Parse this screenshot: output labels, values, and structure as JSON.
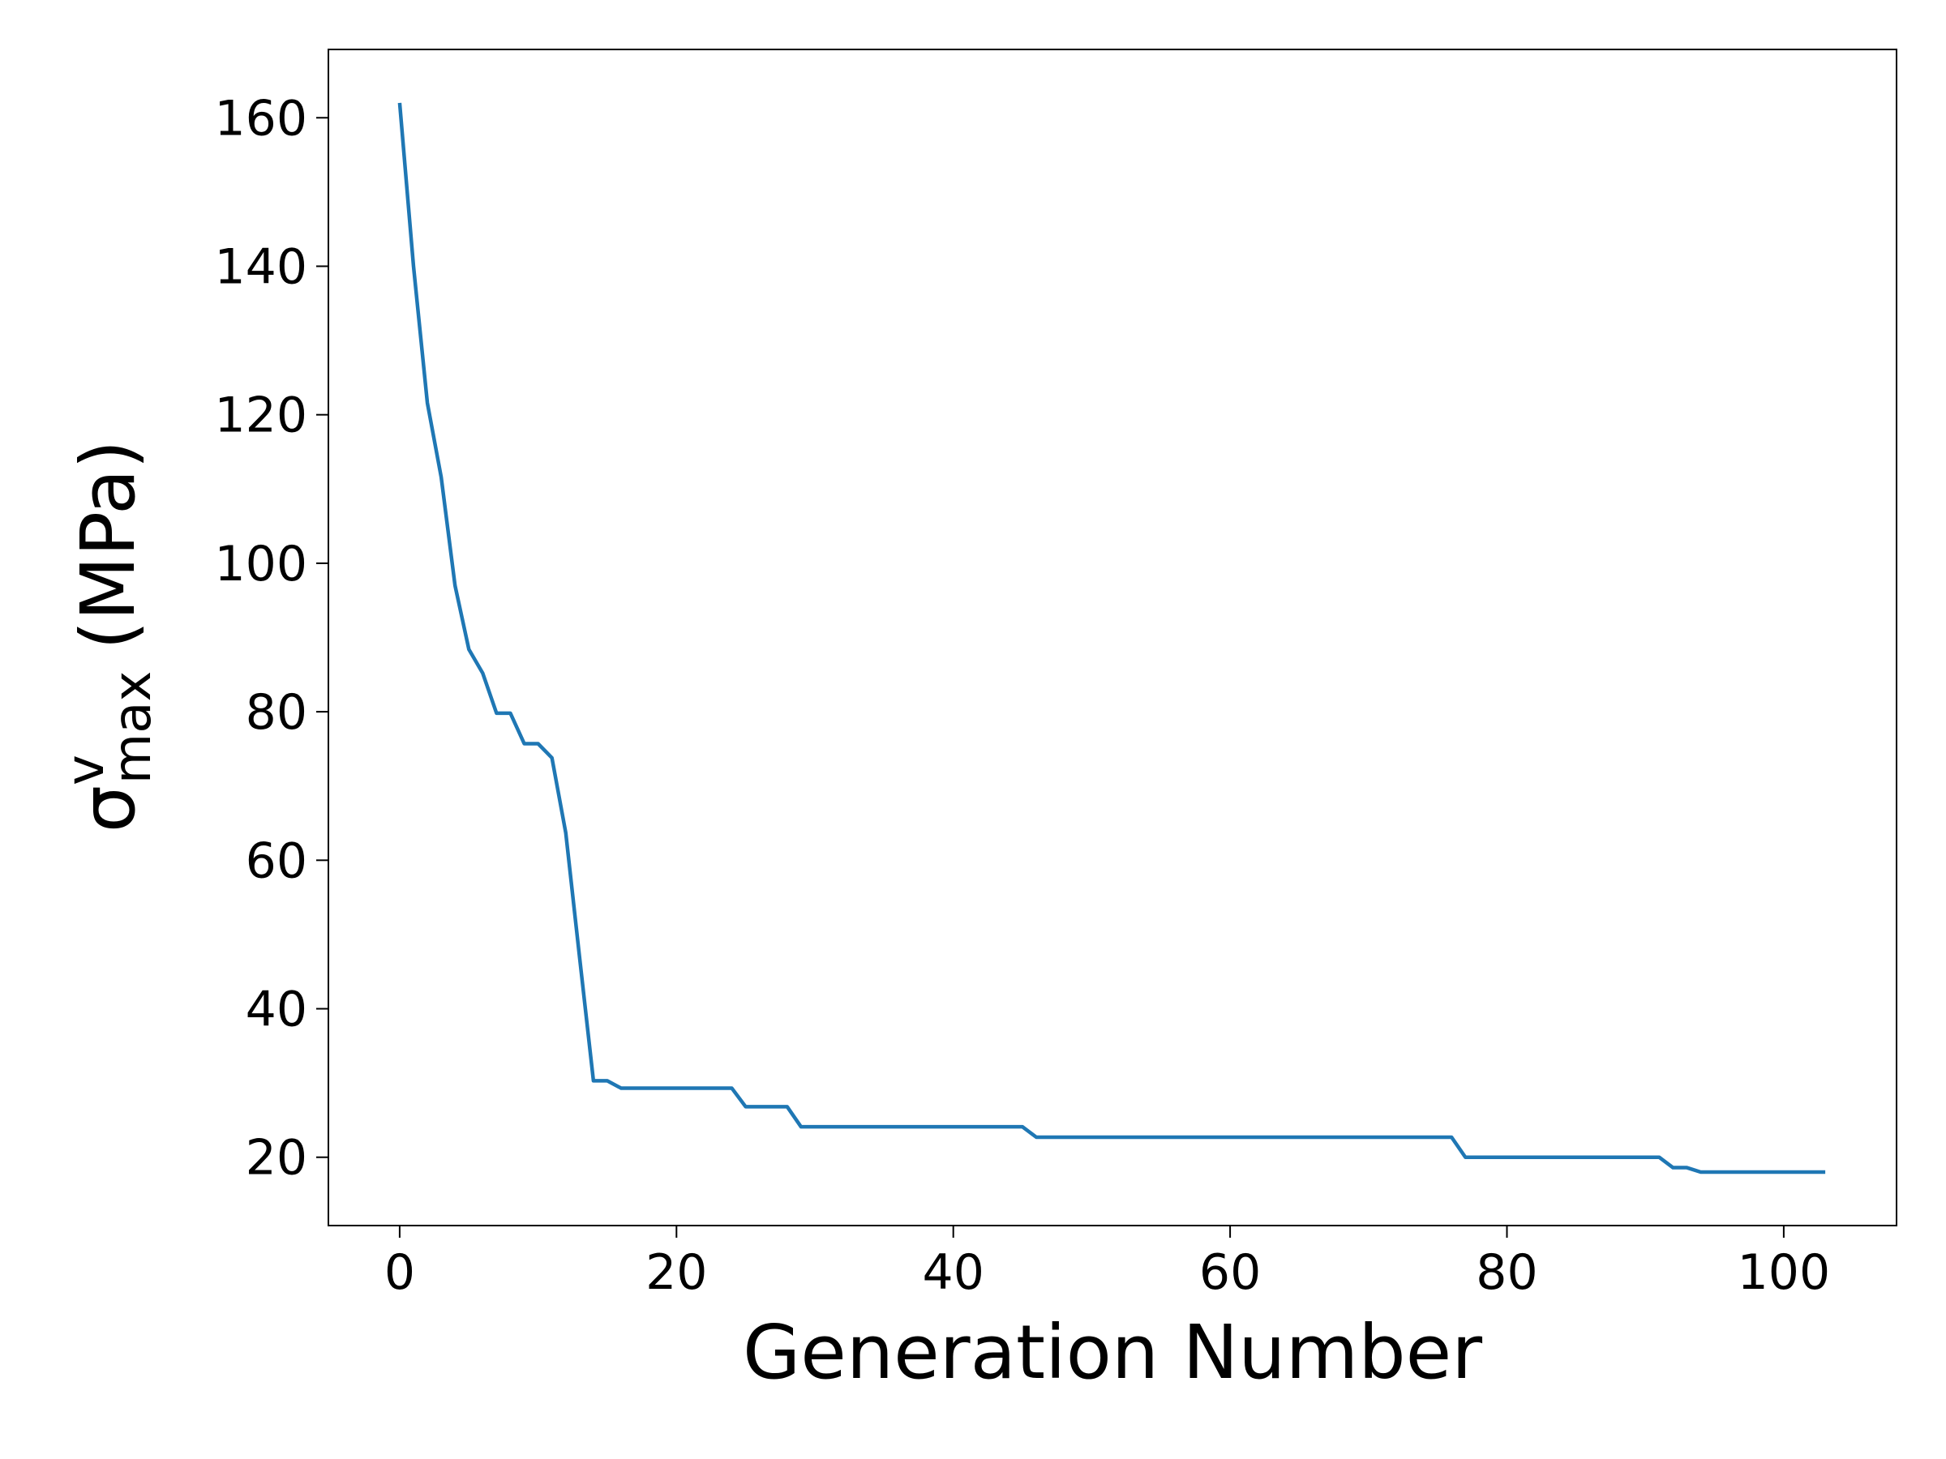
{
  "chart_data": {
    "type": "line",
    "x_label": "Generation Number",
    "y_label": {
      "symbol": "σ",
      "superscript": "v",
      "subscript": "max",
      "unit": "(MPa)"
    },
    "x": [
      0,
      1,
      2,
      3,
      4,
      5,
      6,
      7,
      8,
      9,
      10,
      11,
      12,
      13,
      14,
      15,
      16,
      17,
      18,
      19,
      20,
      21,
      22,
      23,
      24,
      25,
      26,
      27,
      28,
      29,
      30,
      31,
      32,
      33,
      34,
      35,
      36,
      37,
      38,
      39,
      40,
      41,
      42,
      43,
      44,
      45,
      46,
      47,
      48,
      49,
      50,
      51,
      52,
      53,
      54,
      55,
      56,
      57,
      58,
      59,
      60,
      61,
      62,
      63,
      64,
      65,
      66,
      67,
      68,
      69,
      70,
      71,
      72,
      73,
      74,
      75,
      76,
      77,
      78,
      79,
      80,
      81,
      82,
      83,
      84,
      85,
      86,
      87,
      88,
      89,
      90,
      91,
      92,
      93,
      94,
      95,
      96,
      97,
      98,
      99,
      100,
      101,
      102,
      103
    ],
    "series": [
      {
        "color": "#1f77b4",
        "values": [
          162,
          140,
          121.6,
          111.6,
          97,
          88.4,
          85.2,
          79.8,
          79.8,
          75.7,
          75.7,
          73.8,
          63.7,
          46.9,
          30.3,
          30.3,
          29.3,
          29.3,
          29.3,
          29.3,
          29.3,
          29.3,
          29.3,
          29.3,
          29.3,
          26.8,
          26.8,
          26.8,
          26.8,
          24.1,
          24.1,
          24.1,
          24.1,
          24.1,
          24.1,
          24.1,
          24.1,
          24.1,
          24.1,
          24.1,
          24.1,
          24.1,
          24.1,
          24.1,
          24.1,
          24.1,
          22.7,
          22.7,
          22.7,
          22.7,
          22.7,
          22.7,
          22.7,
          22.7,
          22.7,
          22.7,
          22.7,
          22.7,
          22.7,
          22.7,
          22.7,
          22.7,
          22.7,
          22.7,
          22.7,
          22.7,
          22.7,
          22.7,
          22.7,
          22.7,
          22.7,
          22.7,
          22.7,
          22.7,
          22.7,
          22.7,
          22.7,
          20,
          20,
          20,
          20,
          20,
          20,
          20,
          20,
          20,
          20,
          20,
          20,
          20,
          20,
          20,
          18.6,
          18.6,
          18,
          18,
          18,
          18,
          18,
          18,
          18,
          18,
          18,
          18
        ]
      }
    ],
    "xlim": [
      -5.15,
      108.15
    ],
    "xticks": [
      0,
      20,
      40,
      60,
      80,
      100
    ],
    "ylim": [
      10.8,
      169.2
    ],
    "yticks": [
      20,
      40,
      60,
      80,
      100,
      120,
      140,
      160
    ]
  }
}
